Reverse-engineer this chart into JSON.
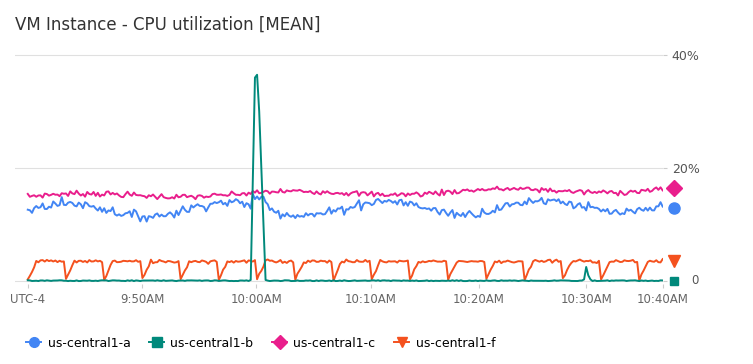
{
  "title": "VM Instance - CPU utilization [MEAN]",
  "title_fontsize": 12,
  "background_color": "#ffffff",
  "plot_bg_color": "#ffffff",
  "grid_color": "#e0e0e0",
  "ylim": [
    -0.5,
    42
  ],
  "x_start": 0,
  "x_end": 100,
  "xtick_positions": [
    0,
    18,
    36,
    54,
    71,
    88,
    100
  ],
  "xtick_labels": [
    "UTC-4",
    "9:50AM",
    "10:00AM",
    "10:10AM",
    "10:20AM",
    "10:30AM",
    "10:40AM"
  ],
  "series": {
    "us-central1-a": {
      "color": "#4285f4",
      "marker": "o",
      "markersize": 8,
      "linewidth": 1.4
    },
    "us-central1-b": {
      "color": "#00897b",
      "marker": "s",
      "markersize": 6,
      "linewidth": 1.4
    },
    "us-central1-c": {
      "color": "#e91e8c",
      "marker": "D",
      "markersize": 8,
      "linewidth": 1.4
    },
    "us-central1-f": {
      "color": "#f4511e",
      "marker": "v",
      "markersize": 8,
      "linewidth": 1.4
    }
  },
  "legend_items": [
    {
      "label": "us-central1-a",
      "color": "#4285f4",
      "marker": "o"
    },
    {
      "label": "us-central1-b",
      "color": "#00897b",
      "marker": "s"
    },
    {
      "label": "us-central1-c",
      "color": "#e91e8c",
      "marker": "D"
    },
    {
      "label": "us-central1-f",
      "color": "#f4511e",
      "marker": "v"
    }
  ],
  "end_values": {
    "us-central1-a": 13.0,
    "us-central1-b": 0.1,
    "us-central1-c": 16.5,
    "us-central1-f": 3.5
  }
}
